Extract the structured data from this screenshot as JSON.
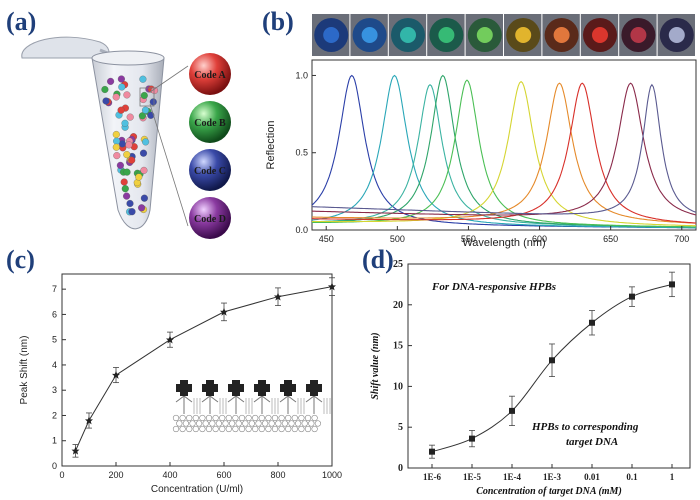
{
  "panels": {
    "a": "(a)",
    "b": "(b)",
    "c": "(c)",
    "d": "(d)"
  },
  "codes": [
    {
      "label": "Code A",
      "color": "#e0403a"
    },
    {
      "label": "Code B",
      "color": "#3aa64a"
    },
    {
      "label": "Code C",
      "color": "#3a4aa8"
    },
    {
      "label": "Code D",
      "color": "#8a3aa0"
    }
  ],
  "chart_data": [
    {
      "id": "b",
      "type": "line",
      "xlabel": "Wavelength (nm)",
      "ylabel": "Reflection",
      "xlim": [
        440,
        710
      ],
      "ylim": [
        0,
        1.1
      ],
      "xticks": [
        450,
        500,
        550,
        600,
        650,
        700
      ],
      "yticks": [
        0.0,
        0.5,
        1.0
      ],
      "ytick_labels": [
        "0.0",
        "0.5",
        "1.0"
      ],
      "series": [
        {
          "peak": 468,
          "height": 1.0,
          "width": 14,
          "baseline": 0.03,
          "color": "#2b3fa8"
        },
        {
          "peak": 498,
          "height": 1.0,
          "width": 14,
          "baseline": 0.03,
          "color": "#2aa7b8"
        },
        {
          "peak": 523,
          "height": 0.94,
          "width": 13,
          "baseline": 0.04,
          "color": "#3bb3a2"
        },
        {
          "peak": 532,
          "height": 1.0,
          "width": 13,
          "baseline": 0.04,
          "color": "#2fa56a"
        },
        {
          "peak": 549,
          "height": 0.97,
          "width": 13,
          "baseline": 0.04,
          "color": "#4bbf55"
        },
        {
          "peak": 587,
          "height": 0.96,
          "width": 14,
          "baseline": 0.05,
          "color": "#d5d532"
        },
        {
          "peak": 614,
          "height": 0.95,
          "width": 14,
          "baseline": 0.08,
          "color": "#e58a2a"
        },
        {
          "peak": 630,
          "height": 0.95,
          "width": 14,
          "baseline": 0.07,
          "color": "#d8302a"
        },
        {
          "peak": 664,
          "height": 0.95,
          "width": 14,
          "baseline": 0.12,
          "color": "#8a2a4a"
        },
        {
          "peak": 679,
          "height": 0.94,
          "width": 10,
          "baseline": 0.15,
          "color": "#5a5a90"
        }
      ],
      "swatches": [
        {
          "outer": "#1c3a7a",
          "inner": "#2f6fd0"
        },
        {
          "outer": "#1e4a8a",
          "inner": "#3a9ae8"
        },
        {
          "outer": "#1b5a6a",
          "inner": "#35c0b0"
        },
        {
          "outer": "#1b5a4a",
          "inner": "#3ac47a"
        },
        {
          "outer": "#2a5a3a",
          "inner": "#7ad860"
        },
        {
          "outer": "#5a4a1a",
          "inner": "#f0c030"
        },
        {
          "outer": "#5a2a1a",
          "inner": "#f08040"
        },
        {
          "outer": "#5a1a1a",
          "inner": "#e83a30"
        },
        {
          "outer": "#3a1a2a",
          "inner": "#c03a4a"
        },
        {
          "outer": "#2a2a4a",
          "inner": "#b0b8d8"
        }
      ]
    },
    {
      "id": "c",
      "type": "line",
      "xlabel": "Concentration (U/ml)",
      "ylabel": "Peak Shift (nm)",
      "xlim": [
        0,
        1000
      ],
      "ylim": [
        0,
        7.6
      ],
      "xticks": [
        0,
        200,
        400,
        600,
        800,
        1000
      ],
      "yticks": [
        0,
        1,
        2,
        3,
        4,
        5,
        6,
        7
      ],
      "x": [
        50,
        100,
        200,
        400,
        600,
        800,
        1000
      ],
      "y": [
        0.6,
        1.8,
        3.6,
        5.0,
        6.1,
        6.7,
        7.1
      ],
      "err": [
        0.25,
        0.3,
        0.3,
        0.3,
        0.35,
        0.35,
        0.35
      ]
    },
    {
      "id": "d",
      "type": "line",
      "xlabel": "Concentration of target DNA (mM)",
      "ylabel": "Shift value (nm)",
      "ylim": [
        0,
        25
      ],
      "yticks": [
        0,
        5,
        10,
        15,
        20,
        25
      ],
      "categories": [
        "1E-6",
        "1E-5",
        "1E-4",
        "1E-3",
        "0.01",
        "0.1",
        "1"
      ],
      "values": [
        2.0,
        3.6,
        7.0,
        13.2,
        17.8,
        21.0,
        22.5
      ],
      "err": [
        0.8,
        1.0,
        1.8,
        2.0,
        1.5,
        1.2,
        1.5
      ],
      "annotation_top": "For DNA-responsive HPBs",
      "annotation_bottom_1": "HPBs to corresponding",
      "annotation_bottom_2": "target DNA"
    }
  ]
}
